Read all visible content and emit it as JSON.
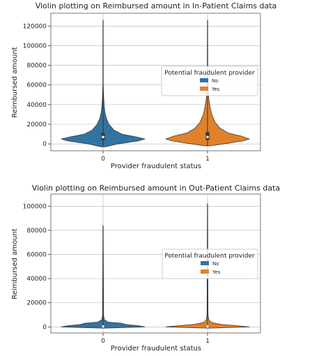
{
  "chart_data": [
    {
      "type": "violin",
      "title": "Violin plotting on Reimbursed amount in In-Patient Claims data",
      "xlabel": "Provider fraudulent status",
      "ylabel": "Reimbursed amount",
      "categories": [
        "0",
        "1"
      ],
      "ylim": [
        -7000,
        133000
      ],
      "yticks": [
        0,
        20000,
        40000,
        60000,
        80000,
        100000,
        120000
      ],
      "ytick_labels": [
        "0",
        "20000",
        "40000",
        "60000",
        "80000",
        "100000",
        "120000"
      ],
      "grid": true,
      "legend": {
        "title": "Potential fraudulent provider",
        "placement": "center-right",
        "entries": [
          {
            "label": "No",
            "color": "#3274a1"
          },
          {
            "label": "Yes",
            "color": "#e1812c"
          }
        ]
      },
      "series": [
        {
          "name": "No",
          "category": "0",
          "color": "#3274a1",
          "min": -3000,
          "max": 126000,
          "q1": 4000,
          "median": 7000,
          "q3": 11000,
          "density": [
            [
              -3000,
              0.05
            ],
            [
              0,
              0.35
            ],
            [
              3000,
              0.85
            ],
            [
              5000,
              1.0
            ],
            [
              7000,
              0.8
            ],
            [
              10000,
              0.45
            ],
            [
              14000,
              0.26
            ],
            [
              20000,
              0.14
            ],
            [
              26000,
              0.08
            ],
            [
              32000,
              0.045
            ],
            [
              40000,
              0.025
            ],
            [
              50000,
              0.012
            ],
            [
              60000,
              0.005
            ],
            [
              126000,
              0.003
            ]
          ]
        },
        {
          "name": "Yes",
          "category": "1",
          "color": "#e1812c",
          "min": -2000,
          "max": 126000,
          "q1": 4000,
          "median": 7000,
          "q3": 12000,
          "density": [
            [
              -2000,
              0.05
            ],
            [
              0,
              0.38
            ],
            [
              3000,
              0.85
            ],
            [
              5000,
              1.0
            ],
            [
              8000,
              0.8
            ],
            [
              11000,
              0.5
            ],
            [
              16000,
              0.3
            ],
            [
              22000,
              0.18
            ],
            [
              30000,
              0.1
            ],
            [
              38000,
              0.06
            ],
            [
              46000,
              0.03
            ],
            [
              55000,
              0.015
            ],
            [
              70000,
              0.007
            ],
            [
              126000,
              0.003
            ]
          ]
        }
      ]
    },
    {
      "type": "violin",
      "title": "Violin plotting on Reimbursed amount in Out-Patient Claims data",
      "xlabel": "Provider fraudulent status",
      "ylabel": "Reimbursed amount",
      "categories": [
        "0",
        "1"
      ],
      "ylim": [
        -5000,
        110000
      ],
      "yticks": [
        0,
        20000,
        40000,
        60000,
        80000,
        100000
      ],
      "ytick_labels": [
        "0",
        "20000",
        "40000",
        "60000",
        "80000",
        "100000"
      ],
      "grid": true,
      "legend": {
        "title": "Potential fraudulent provider",
        "placement": "center-right",
        "entries": [
          {
            "label": "No",
            "color": "#3274a1"
          },
          {
            "label": "Yes",
            "color": "#e1812c"
          }
        ]
      },
      "series": [
        {
          "name": "No",
          "category": "0",
          "color": "#3274a1",
          "min": -1000,
          "max": 84000,
          "q1": 100,
          "median": 400,
          "q3": 800,
          "density": [
            [
              -1000,
              0.05
            ],
            [
              0,
              1.0
            ],
            [
              1000,
              0.85
            ],
            [
              2000,
              0.55
            ],
            [
              3000,
              0.45
            ],
            [
              4000,
              0.12
            ],
            [
              6000,
              0.03
            ],
            [
              10000,
              0.012
            ],
            [
              84000,
              0.004
            ]
          ]
        },
        {
          "name": "Yes",
          "category": "1",
          "color": "#e1812c",
          "min": -1000,
          "max": 102000,
          "q1": 100,
          "median": 400,
          "q3": 900,
          "density": [
            [
              -1000,
              0.05
            ],
            [
              0,
              1.0
            ],
            [
              1000,
              0.7
            ],
            [
              2000,
              0.35
            ],
            [
              3000,
              0.18
            ],
            [
              4000,
              0.08
            ],
            [
              6000,
              0.03
            ],
            [
              10000,
              0.012
            ],
            [
              102000,
              0.004
            ]
          ]
        }
      ]
    }
  ]
}
